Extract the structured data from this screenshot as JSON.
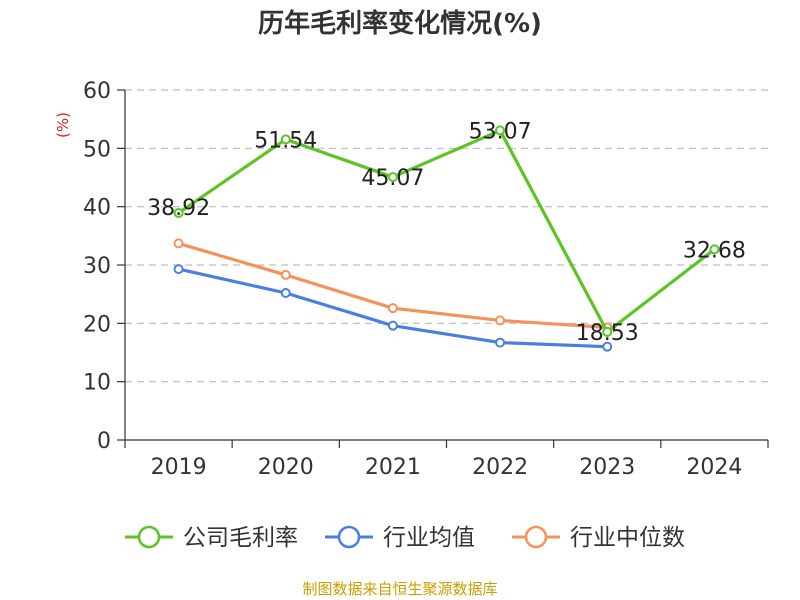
{
  "chart_data": {
    "type": "line",
    "title": "历年毛利率变化情况(%)",
    "ylabel": "(%)",
    "xlabel": "",
    "categories": [
      "2019",
      "2020",
      "2021",
      "2022",
      "2023",
      "2024"
    ],
    "ylim": [
      0,
      60
    ],
    "yticks": [
      0,
      10,
      20,
      30,
      40,
      50,
      60
    ],
    "grid": true,
    "legend_position": "bottom",
    "series": [
      {
        "name": "公司毛利率",
        "color": "#5cc424",
        "values": [
          38.92,
          51.54,
          45.07,
          53.07,
          18.53,
          32.68
        ],
        "labels": [
          "38.92",
          "51.54",
          "45.07",
          "53.07",
          "18.53",
          "32.68"
        ]
      },
      {
        "name": "行业均值",
        "color": "#4a7fe0",
        "values": [
          29.3,
          25.2,
          19.6,
          16.7,
          16.0,
          null
        ]
      },
      {
        "name": "行业中位数",
        "color": "#f5925c",
        "values": [
          33.7,
          28.3,
          22.6,
          20.5,
          19.3,
          null
        ]
      }
    ]
  },
  "source_note": "制图数据来自恒生聚源数据库"
}
